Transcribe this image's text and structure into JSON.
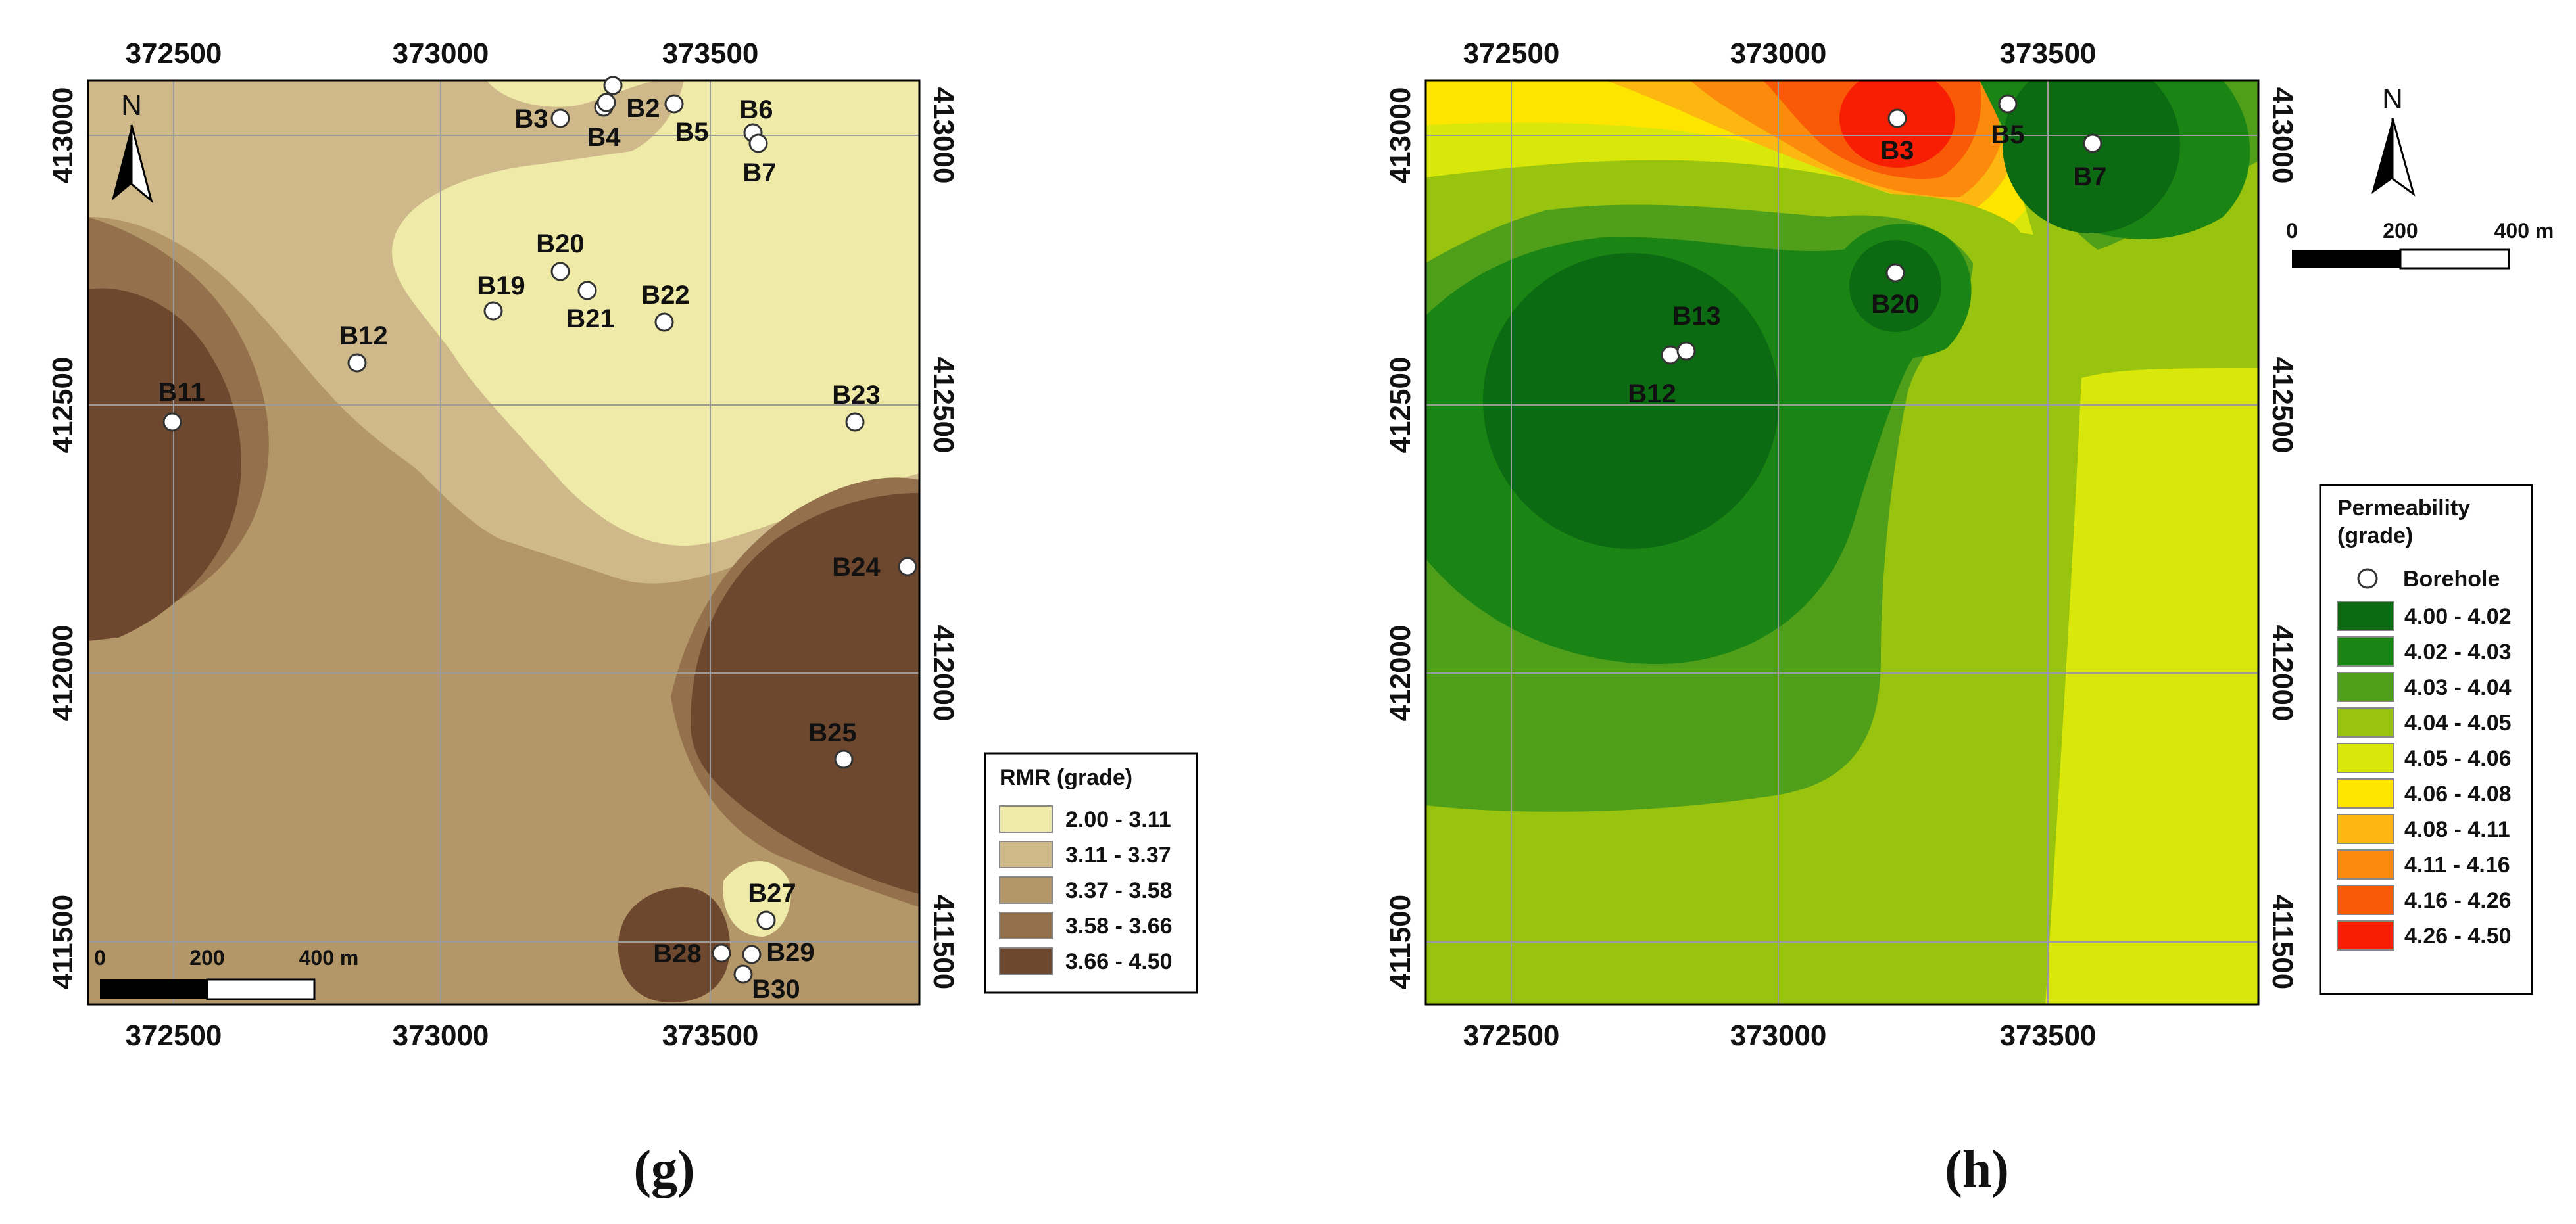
{
  "panels": [
    {
      "id": "g",
      "letter": "(g)",
      "x_ticks": [
        "372500",
        "373000",
        "373500"
      ],
      "y_ticks": [
        "413000",
        "412500",
        "412000",
        "411500"
      ],
      "north_label": "N",
      "scale": {
        "labels": [
          "0",
          "200",
          "400 m"
        ]
      },
      "legend": {
        "title": "RMR (grade)",
        "classes": [
          {
            "label": "2.00 - 3.11",
            "color": "#efeaa8"
          },
          {
            "label": "3.11 - 3.37",
            "color": "#cfb98a"
          },
          {
            "label": "3.37 - 3.58",
            "color": "#b49769"
          },
          {
            "label": "3.58 - 3.66",
            "color": "#94714c"
          },
          {
            "label": "3.66 - 4.50",
            "color": "#6e482e"
          }
        ]
      },
      "boreholes": [
        "B2",
        "B3",
        "B4",
        "B5",
        "B6",
        "B7",
        "B11",
        "B12",
        "B19",
        "B20",
        "B21",
        "B22",
        "B23",
        "B24",
        "B25",
        "B27",
        "B28",
        "B29",
        "B30"
      ]
    },
    {
      "id": "h",
      "letter": "(h)",
      "x_ticks": [
        "372500",
        "373000",
        "373500"
      ],
      "y_ticks": [
        "413000",
        "412500",
        "412000",
        "411500"
      ],
      "north_label": "N",
      "scale": {
        "labels": [
          "0",
          "200",
          "400 m"
        ]
      },
      "legend": {
        "title_line1": "Permeability",
        "title_line2": "(grade)",
        "borehole_label": "Borehole",
        "classes": [
          {
            "label": "4.00 - 4.02",
            "color": "#0c6a12"
          },
          {
            "label": "4.02 - 4.03",
            "color": "#1a8414"
          },
          {
            "label": "4.03 - 4.04",
            "color": "#4f9f1b"
          },
          {
            "label": "4.04 - 4.05",
            "color": "#98c30e"
          },
          {
            "label": "4.05 - 4.06",
            "color": "#d9e80a"
          },
          {
            "label": "4.06 - 4.08",
            "color": "#fee500"
          },
          {
            "label": "4.08 - 4.11",
            "color": "#fdb711"
          },
          {
            "label": "4.11 - 4.16",
            "color": "#fb8a0d"
          },
          {
            "label": "4.16 - 4.26",
            "color": "#f95a08"
          },
          {
            "label": "4.26 - 4.50",
            "color": "#f81e04"
          }
        ]
      },
      "boreholes": [
        "B3",
        "B5",
        "B7",
        "B12",
        "B13",
        "B20"
      ]
    }
  ]
}
